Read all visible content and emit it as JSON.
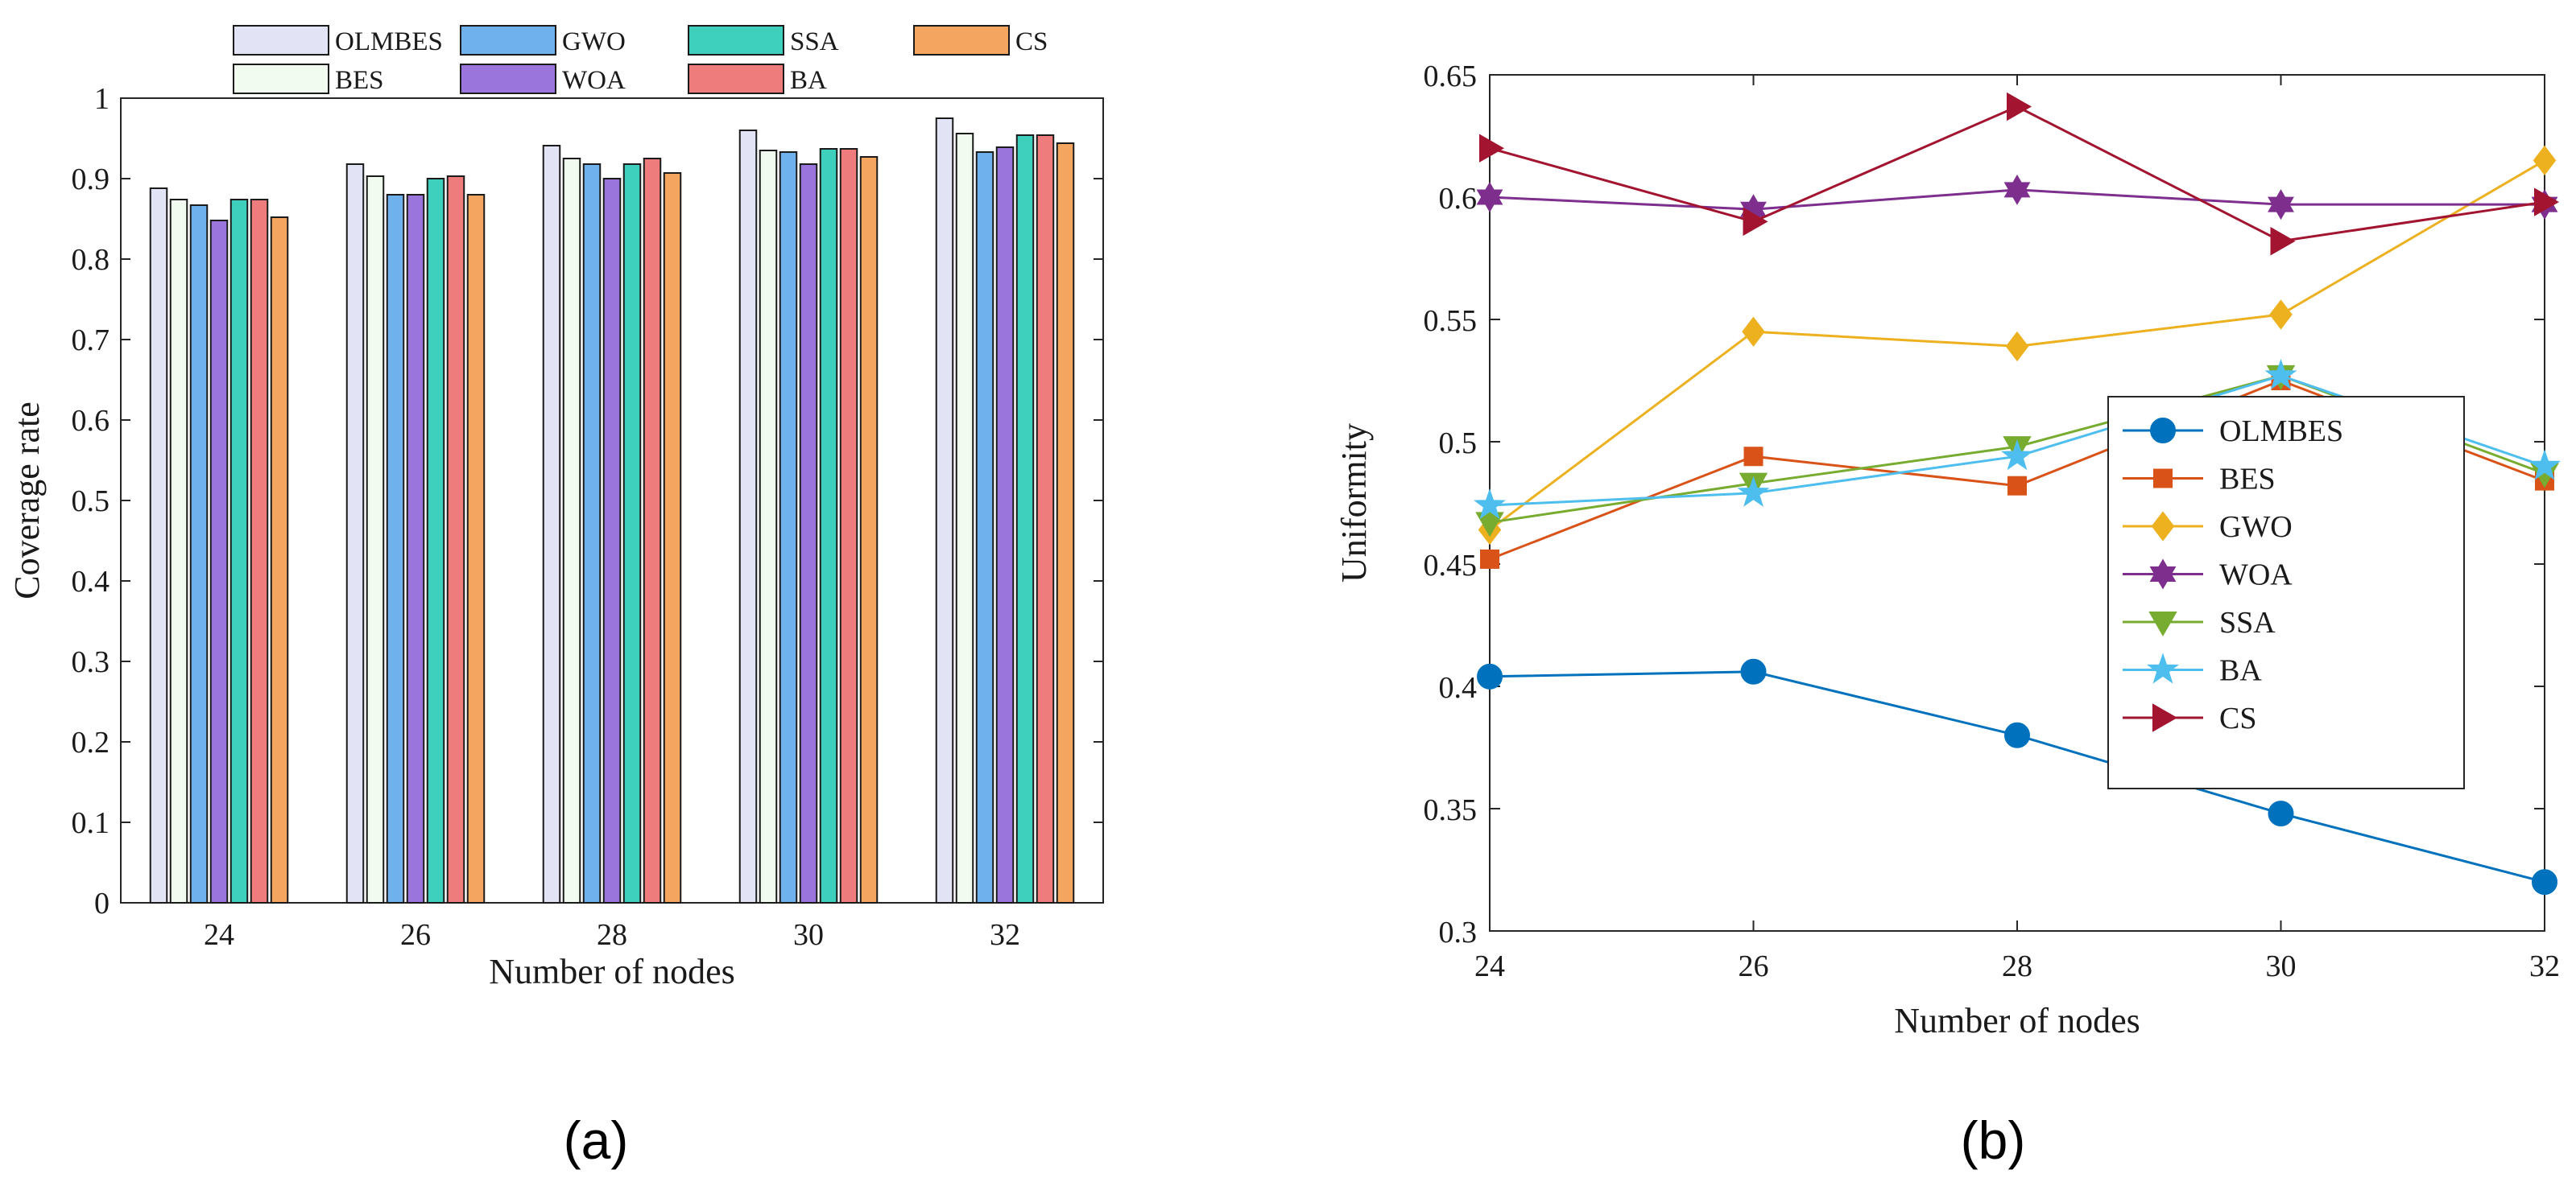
{
  "chart_data": [
    {
      "type": "bar",
      "panel_label": "(a)",
      "xlabel": "Number of nodes",
      "ylabel": "Coverage rate",
      "categories": [
        "24",
        "26",
        "28",
        "30",
        "32"
      ],
      "ylim": [
        0,
        1
      ],
      "yticks": [
        "0",
        "0.1",
        "0.2",
        "0.3",
        "0.4",
        "0.5",
        "0.6",
        "0.7",
        "0.8",
        "0.9",
        "1"
      ],
      "legend_placement": "top",
      "grid": false,
      "series": [
        {
          "name": "OLMBES",
          "color": "#e2e3f5",
          "values": [
            0.888,
            0.918,
            0.941,
            0.96,
            0.975
          ]
        },
        {
          "name": "BES",
          "color": "#f1fbf0",
          "values": [
            0.874,
            0.903,
            0.925,
            0.935,
            0.956
          ]
        },
        {
          "name": "GWO",
          "color": "#6eb1ec",
          "values": [
            0.867,
            0.88,
            0.918,
            0.933,
            0.933
          ]
        },
        {
          "name": "WOA",
          "color": "#9a76dc",
          "values": [
            0.848,
            0.88,
            0.9,
            0.918,
            0.939
          ]
        },
        {
          "name": "SSA",
          "color": "#3fcfbd",
          "values": [
            0.874,
            0.9,
            0.918,
            0.937,
            0.954
          ]
        },
        {
          "name": "BA",
          "color": "#ef7c7c",
          "values": [
            0.874,
            0.903,
            0.925,
            0.937,
            0.954
          ]
        },
        {
          "name": "CS",
          "color": "#f4a55f",
          "values": [
            0.852,
            0.88,
            0.907,
            0.927,
            0.944
          ]
        }
      ]
    },
    {
      "type": "line",
      "panel_label": "(b)",
      "xlabel": "Number of nodes",
      "ylabel": "Uniformity",
      "x": [
        24,
        26,
        28,
        30,
        32
      ],
      "xticks": [
        "24",
        "26",
        "28",
        "30",
        "32"
      ],
      "xlim": [
        24,
        32
      ],
      "ylim": [
        0.3,
        0.65
      ],
      "yticks": [
        "0.3",
        "0.35",
        "0.4",
        "0.45",
        "0.5",
        "0.55",
        "0.6",
        "0.65"
      ],
      "legend_placement": "center-right",
      "grid": false,
      "series": [
        {
          "name": "OLMBES",
          "color": "#0072bd",
          "marker": "circle",
          "values": [
            0.404,
            0.406,
            0.38,
            0.348,
            0.32
          ]
        },
        {
          "name": "BES",
          "color": "#d95319",
          "marker": "square",
          "values": [
            0.452,
            0.494,
            0.482,
            0.525,
            0.484
          ]
        },
        {
          "name": "GWO",
          "color": "#edb120",
          "marker": "diamond",
          "values": [
            0.464,
            0.545,
            0.539,
            0.552,
            0.615
          ]
        },
        {
          "name": "WOA",
          "color": "#7e2f8e",
          "marker": "hexagram",
          "values": [
            0.6,
            0.595,
            0.603,
            0.597,
            0.597
          ]
        },
        {
          "name": "SSA",
          "color": "#77ac30",
          "marker": "triangle-down",
          "values": [
            0.467,
            0.483,
            0.498,
            0.527,
            0.487
          ]
        },
        {
          "name": "BA",
          "color": "#4dbeee",
          "marker": "pentagram",
          "values": [
            0.474,
            0.479,
            0.494,
            0.527,
            0.49
          ]
        },
        {
          "name": "CS",
          "color": "#a2142f",
          "marker": "triangle-right",
          "values": [
            0.62,
            0.59,
            0.637,
            0.582,
            0.598
          ]
        }
      ]
    }
  ]
}
